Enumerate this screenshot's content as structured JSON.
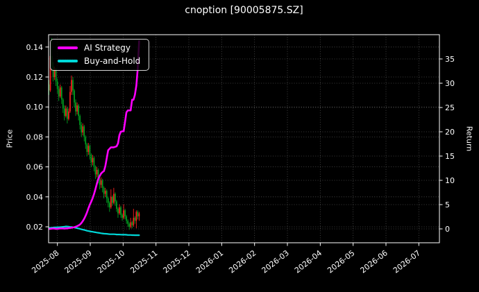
{
  "title": "cnoption [90005875.SZ]",
  "axes": {
    "left_label": "Price",
    "right_label": "Return",
    "price_tick_labels": [
      "0.02",
      "0.04",
      "0.06",
      "0.08",
      "0.10",
      "0.12",
      "0.14"
    ],
    "return_tick_labels": [
      "0",
      "5",
      "10",
      "15",
      "20",
      "25",
      "30",
      "35"
    ],
    "x_tick_labels": [
      "2025-08",
      "2025-09",
      "2025-10",
      "2025-11",
      "2025-12",
      "2026-01",
      "2026-02",
      "2026-03",
      "2026-04",
      "2026-05",
      "2026-06",
      "2026-07"
    ]
  },
  "legend": {
    "items": [
      {
        "label": "AI Strategy",
        "color": "#ff00ff"
      },
      {
        "label": "Buy-and-Hold",
        "color": "#00d9d9"
      }
    ]
  },
  "chart_data": {
    "type": "candlestick+line",
    "title": "cnoption [90005875.SZ]",
    "xlabel": "",
    "x_tick_labels": [
      "2025-08",
      "2025-09",
      "2025-10",
      "2025-11",
      "2025-12",
      "2026-01",
      "2026-02",
      "2026-03",
      "2026-04",
      "2026-05",
      "2026-06",
      "2026-07"
    ],
    "left_axis": {
      "label": "Price",
      "ticks": [
        0.02,
        0.04,
        0.06,
        0.08,
        0.1,
        0.12,
        0.14
      ],
      "range": [
        0.009,
        0.148
      ]
    },
    "right_axis": {
      "label": "Return",
      "ticks": [
        0,
        5,
        10,
        15,
        20,
        25,
        30,
        35
      ],
      "range": [
        -2.9,
        40.0
      ]
    },
    "grid": true,
    "legend_position": "upper-left",
    "colors": {
      "background": "#000000",
      "text": "#ffffff",
      "spine": "#ffffff",
      "grid": "rgba(255,255,255,0.32)",
      "candle_up": "#ff2020",
      "candle_down": "#00a521",
      "ai_strategy": "#ff00ff",
      "buy_and_hold": "#00d9d9"
    },
    "candles_note": "daily OHLC, approx values read from pixels, data spans 2025-08 through late 2025-10, Chinese convention red=up green=down",
    "candles_ohlc": [
      [
        0.115,
        0.118,
        0.108,
        0.111
      ],
      [
        0.111,
        0.139,
        0.11,
        0.134
      ],
      [
        0.134,
        0.146,
        0.124,
        0.127
      ],
      [
        0.127,
        0.13,
        0.117,
        0.12
      ],
      [
        0.12,
        0.127,
        0.118,
        0.125
      ],
      [
        0.125,
        0.126,
        0.114,
        0.117
      ],
      [
        0.117,
        0.119,
        0.109,
        0.112
      ],
      [
        0.112,
        0.114,
        0.104,
        0.107
      ],
      [
        0.107,
        0.115,
        0.106,
        0.113
      ],
      [
        0.113,
        0.114,
        0.102,
        0.105
      ],
      [
        0.105,
        0.106,
        0.096,
        0.099
      ],
      [
        0.099,
        0.101,
        0.091,
        0.094
      ],
      [
        0.094,
        0.101,
        0.093,
        0.099
      ],
      [
        0.099,
        0.1,
        0.089,
        0.092
      ],
      [
        0.092,
        0.099,
        0.091,
        0.097
      ],
      [
        0.097,
        0.114,
        0.096,
        0.11
      ],
      [
        0.11,
        0.121,
        0.108,
        0.118
      ],
      [
        0.118,
        0.12,
        0.108,
        0.111
      ],
      [
        0.111,
        0.112,
        0.1,
        0.103
      ],
      [
        0.103,
        0.105,
        0.094,
        0.097
      ],
      [
        0.097,
        0.103,
        0.095,
        0.101
      ],
      [
        0.101,
        0.102,
        0.091,
        0.094
      ],
      [
        0.094,
        0.095,
        0.085,
        0.088
      ],
      [
        0.088,
        0.09,
        0.08,
        0.083
      ],
      [
        0.083,
        0.089,
        0.081,
        0.087
      ],
      [
        0.087,
        0.088,
        0.077,
        0.08
      ],
      [
        0.08,
        0.081,
        0.072,
        0.075
      ],
      [
        0.075,
        0.076,
        0.067,
        0.07
      ],
      [
        0.07,
        0.076,
        0.068,
        0.074
      ],
      [
        0.074,
        0.075,
        0.065,
        0.068
      ],
      [
        0.068,
        0.069,
        0.06,
        0.063
      ],
      [
        0.063,
        0.068,
        0.061,
        0.066
      ],
      [
        0.066,
        0.067,
        0.057,
        0.06
      ],
      [
        0.06,
        0.061,
        0.052,
        0.055
      ],
      [
        0.055,
        0.06,
        0.053,
        0.058
      ],
      [
        0.058,
        0.059,
        0.049,
        0.052
      ],
      [
        0.052,
        0.053,
        0.045,
        0.048
      ],
      [
        0.048,
        0.053,
        0.046,
        0.051
      ],
      [
        0.051,
        0.052,
        0.043,
        0.046
      ],
      [
        0.046,
        0.047,
        0.039,
        0.042
      ],
      [
        0.042,
        0.046,
        0.04,
        0.044
      ],
      [
        0.044,
        0.045,
        0.036,
        0.039
      ],
      [
        0.039,
        0.04,
        0.033,
        0.036
      ],
      [
        0.036,
        0.037,
        0.03,
        0.033
      ],
      [
        0.033,
        0.045,
        0.032,
        0.04
      ],
      [
        0.04,
        0.041,
        0.034,
        0.036
      ],
      [
        0.036,
        0.046,
        0.035,
        0.042
      ],
      [
        0.042,
        0.043,
        0.034,
        0.037
      ],
      [
        0.037,
        0.038,
        0.03,
        0.032
      ],
      [
        0.032,
        0.033,
        0.026,
        0.029
      ],
      [
        0.029,
        0.035,
        0.028,
        0.033
      ],
      [
        0.033,
        0.034,
        0.026,
        0.028
      ],
      [
        0.028,
        0.029,
        0.024,
        0.026
      ],
      [
        0.026,
        0.035,
        0.025,
        0.031
      ],
      [
        0.031,
        0.032,
        0.025,
        0.027
      ],
      [
        0.027,
        0.028,
        0.022,
        0.024
      ],
      [
        0.024,
        0.025,
        0.02,
        0.022
      ],
      [
        0.022,
        0.023,
        0.018,
        0.02
      ],
      [
        0.02,
        0.026,
        0.019,
        0.023
      ],
      [
        0.023,
        0.024,
        0.019,
        0.021
      ],
      [
        0.021,
        0.032,
        0.02,
        0.026
      ],
      [
        0.026,
        0.027,
        0.022,
        0.024
      ],
      [
        0.024,
        0.031,
        0.019,
        0.03
      ],
      [
        0.03,
        0.031,
        0.025,
        0.027
      ],
      [
        0.027,
        0.03,
        0.024,
        0.029
      ]
    ],
    "series": [
      {
        "name": "AI Strategy",
        "axis": "return",
        "color": "#ff00ff",
        "values": [
          0,
          0,
          0.05,
          0.1,
          0.05,
          0,
          0,
          0.05,
          0.1,
          0.1,
          0.1,
          0.05,
          0.1,
          0.1,
          0.15,
          0.2,
          0.25,
          0.3,
          0.35,
          0.45,
          0.55,
          0.7,
          0.9,
          1.2,
          1.6,
          2.1,
          2.7,
          3.4,
          4.2,
          5.0,
          5.6,
          6.3,
          7.2,
          8.2,
          9.3,
          10.3,
          10.9,
          11.4,
          11.7,
          11.9,
          12.9,
          14.5,
          16.2,
          16.5,
          16.8,
          16.8,
          16.8,
          16.9,
          17.0,
          17.6,
          19.3,
          20.0,
          20.1,
          20.1,
          22.0,
          24.0,
          24.4,
          24.4,
          24.4,
          26.6,
          26.6,
          27.6,
          29.5,
          33.0,
          38.7
        ]
      },
      {
        "name": "Buy-and-Hold",
        "axis": "return",
        "color": "#00d9d9",
        "values": [
          0.2,
          0.22,
          0.25,
          0.27,
          0.3,
          0.32,
          0.33,
          0.35,
          0.36,
          0.38,
          0.42,
          0.45,
          0.5,
          0.48,
          0.45,
          0.42,
          0.4,
          0.35,
          0.3,
          0.22,
          0.15,
          0.08,
          0.0,
          -0.08,
          -0.15,
          -0.22,
          -0.3,
          -0.38,
          -0.45,
          -0.5,
          -0.55,
          -0.6,
          -0.65,
          -0.7,
          -0.75,
          -0.8,
          -0.85,
          -0.9,
          -0.95,
          -0.98,
          -1.0,
          -1.02,
          -1.05,
          -1.08,
          -1.1,
          -1.1,
          -1.1,
          -1.12,
          -1.15,
          -1.15,
          -1.15,
          -1.18,
          -1.2,
          -1.2,
          -1.2,
          -1.22,
          -1.25,
          -1.25,
          -1.25,
          -1.28,
          -1.28,
          -1.3,
          -1.3,
          -1.3,
          -1.3
        ]
      }
    ]
  }
}
